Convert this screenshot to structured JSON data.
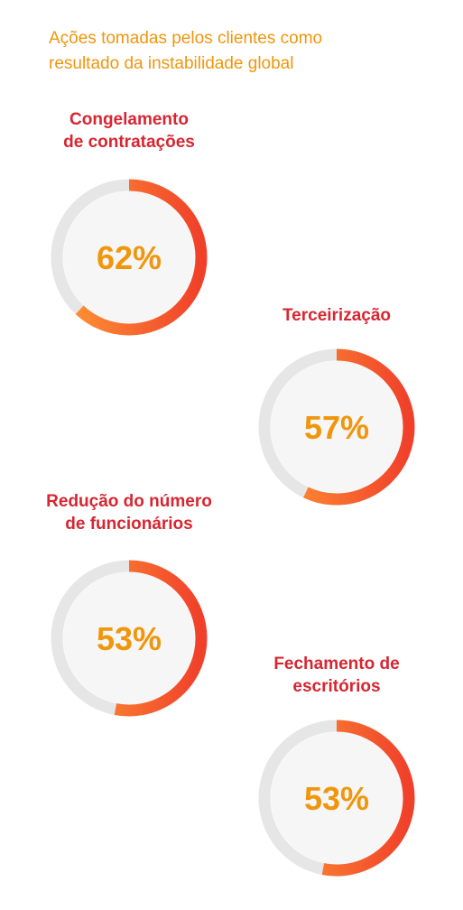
{
  "title_lines": [
    "Ações tomadas pelos clientes como",
    "resultado da instabilidade global"
  ],
  "colors": {
    "title": "#f0960c",
    "label": "#d72631",
    "value": "#f0960c",
    "track": "#e6e6e6",
    "inner": "#f6f6f6",
    "arc_start": "#ff9a35",
    "arc_end": "#f0402a"
  },
  "chart_data": {
    "type": "pie",
    "title": "Ações tomadas pelos clientes como resultado da instabilidade global",
    "items": [
      {
        "label_lines": [
          "Congelamento",
          "de contratações"
        ],
        "value": 62,
        "display": "62%"
      },
      {
        "label_lines": [
          "Terceirização"
        ],
        "value": 57,
        "display": "57%"
      },
      {
        "label_lines": [
          "Redução do número",
          "de funcionários"
        ],
        "value": 53,
        "display": "53%"
      },
      {
        "label_lines": [
          "Fechamento de",
          "escritórios"
        ],
        "value": 53,
        "display": "53%"
      }
    ]
  }
}
